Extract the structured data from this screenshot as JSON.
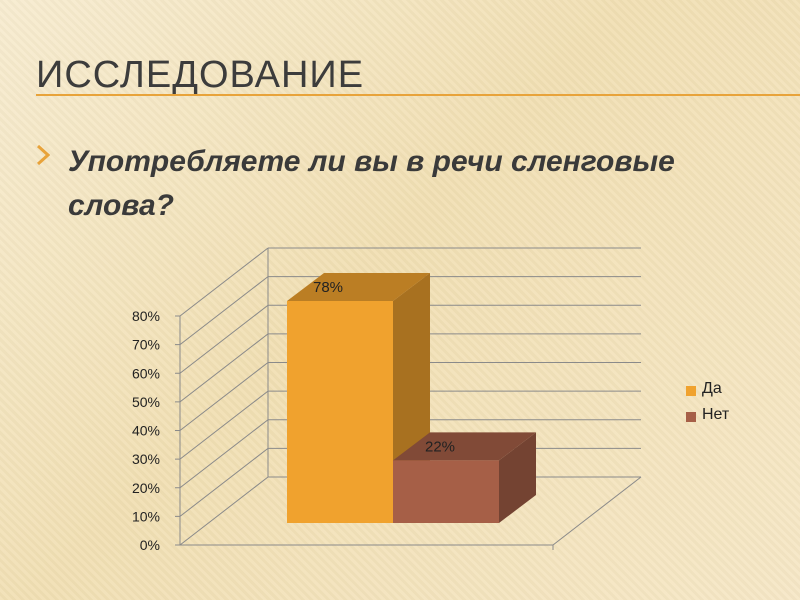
{
  "slide": {
    "title": "ИССЛЕДОВАНИЕ",
    "question": "Употребляете ли вы в речи сленговые слова?"
  },
  "colors": {
    "accent": "#e8a33a",
    "series_da": "#f0a22e",
    "series_net": "#a65f47",
    "grid": "#8a8a8a"
  },
  "icons": {
    "bullet": "arrow-chevron-icon"
  },
  "chart_data": {
    "type": "bar",
    "categories": [
      "Да",
      "Нет"
    ],
    "values": [
      78,
      22
    ],
    "data_labels": [
      "78%",
      "22%"
    ],
    "y_ticks": [
      "0%",
      "10%",
      "20%",
      "30%",
      "40%",
      "50%",
      "60%",
      "70%",
      "80%"
    ],
    "ylim": [
      0,
      80
    ],
    "legend": [
      "Да",
      "Нет"
    ],
    "legend_position": "right",
    "grid": true,
    "style": "3d"
  }
}
